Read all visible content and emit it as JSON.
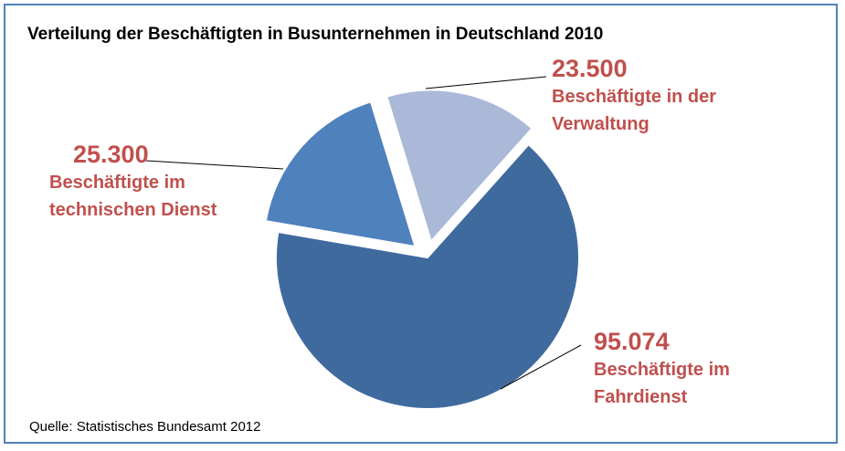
{
  "chart_data": {
    "type": "pie",
    "title": "Verteilung der Beschäftigten in Busunternehmen in Deutschland 2010",
    "source": "Quelle: Statistisches Bundesamt  2012",
    "slices": [
      {
        "value": 23500,
        "value_label": "23.500",
        "label_lines": [
          "Beschäftigte in der",
          "Verwaltung"
        ],
        "color": "#aab9d7",
        "exploded": true
      },
      {
        "value": 95074,
        "value_label": "95.074",
        "label_lines": [
          "Beschäftigte im",
          "Fahrdienst"
        ],
        "color": "#3f6a9e",
        "exploded": false
      },
      {
        "value": 25300,
        "value_label": "25.300",
        "label_lines": [
          "Beschäftigte im",
          "technischen Dienst"
        ],
        "color": "#4f81bd",
        "exploded": true
      }
    ],
    "start_angle_deg": -17,
    "label_color": "#c0504d",
    "leader_color": "#000000",
    "legend": "none"
  }
}
